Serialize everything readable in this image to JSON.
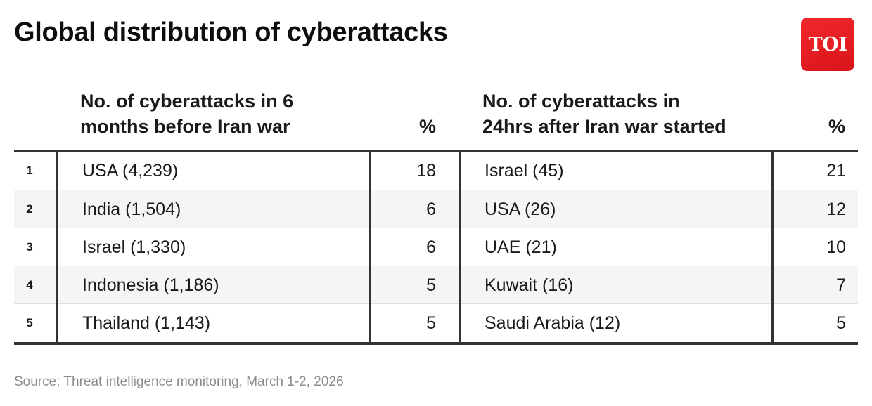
{
  "title": "Global distribution of cyberattacks",
  "logo": {
    "text": "TOI",
    "color": "#e31b23"
  },
  "headers": {
    "left_line1": "No. of cyberattacks in 6",
    "left_line2": "months before Iran war",
    "left_pct": "%",
    "right_line1": "No. of cyberattacks in",
    "right_line2": "24hrs after Iran war started",
    "right_pct": "%"
  },
  "rows": [
    {
      "rank": "1",
      "before": "USA (4,239)",
      "before_pct": "18",
      "after": "Israel (45)",
      "after_pct": "21"
    },
    {
      "rank": "2",
      "before": "India (1,504)",
      "before_pct": "6",
      "after": "USA (26)",
      "after_pct": "12"
    },
    {
      "rank": "3",
      "before": "Israel (1,330)",
      "before_pct": "6",
      "after": "UAE (21)",
      "after_pct": "10"
    },
    {
      "rank": "4",
      "before": "Indonesia (1,186)",
      "before_pct": "5",
      "after": "Kuwait (16)",
      "after_pct": "7"
    },
    {
      "rank": "5",
      "before": "Thailand (1,143)",
      "before_pct": "5",
      "after": "Saudi Arabia (12)",
      "after_pct": "5"
    }
  ],
  "source": "Source: Threat intelligence monitoring, March 1-2, 2026"
}
